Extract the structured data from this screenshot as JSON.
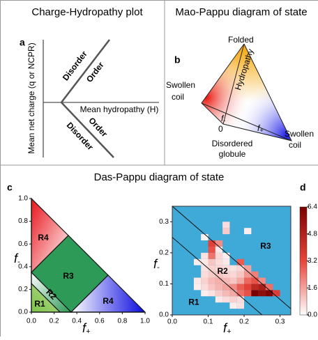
{
  "panel_a": {
    "letter": "a",
    "title": "Charge-Hydropathy plot",
    "y_label": "Mean net charge (q or NCPR)",
    "x_label": "Mean hydropathy (H)",
    "upper": [
      "Disorder",
      "Order"
    ],
    "lower": [
      "Order",
      "Disorder"
    ]
  },
  "panel_b": {
    "letter": "b",
    "title": "Mao-Pappu diagram of state",
    "top": "Folded",
    "axis": "Hydropathy",
    "left": [
      "Swollen",
      "coil"
    ],
    "right": [
      "Swollen",
      "coil"
    ],
    "bottom": [
      "Disordered",
      "globule"
    ],
    "origin": "0",
    "f_minus": {
      "symbol": "f",
      "sub": "-"
    },
    "f_plus": {
      "symbol": "f",
      "sub": "+"
    }
  },
  "bottom_title": "Das-Pappu diagram of state",
  "panel_c": {
    "letter": "c",
    "regions": [
      "R4",
      "R3",
      "R4",
      "R1",
      "R2"
    ],
    "xticks": [
      {
        "value": 0,
        "label": "0.0"
      },
      0.2,
      0.4,
      0.6,
      0.8,
      {
        "value": 1,
        "label": "1.0"
      }
    ],
    "yticks": [
      {
        "value": 0,
        "label": "0.0"
      },
      0.2,
      0.4,
      0.6,
      0.8,
      {
        "value": 1,
        "label": "1.0"
      }
    ],
    "x_label": {
      "symbol": "f",
      "sub": "+"
    },
    "y_label": {
      "symbol": "f",
      "sub": "-"
    }
  },
  "panel_d": {
    "letter": "d",
    "type": "heatmap",
    "xlim": [
      0,
      0.33
    ],
    "ylim": [
      0,
      0.35
    ],
    "bin": 0.02,
    "xticks": [
      {
        "value": 0,
        "label": "0.0"
      },
      0.1,
      0.2,
      0.3
    ],
    "yticks": [
      {
        "value": 0,
        "label": "0.0"
      },
      0.1,
      0.2,
      0.3
    ],
    "boundaries": [
      0.25,
      0.35
    ],
    "regions": [
      {
        "label": "R1",
        "x": 0.06,
        "y": 0.04
      },
      {
        "label": "R2",
        "x": 0.14,
        "y": 0.14
      },
      {
        "label": "R3",
        "x": 0.26,
        "y": 0.22
      }
    ],
    "x_label": {
      "symbol": "f",
      "sub": "+"
    },
    "y_label": {
      "symbol": "f",
      "sub": "-"
    },
    "clim": [
      0,
      6.4
    ],
    "cticks": [
      {
        "value": 0,
        "label": "0.0"
      },
      1.6,
      3.2,
      4.8,
      6.4
    ],
    "cells": [
      [
        0.16,
        0.02,
        0.3
      ],
      [
        0.18,
        0.02,
        0.5
      ],
      [
        0.12,
        0.04,
        0.4
      ],
      [
        0.14,
        0.04,
        0.6
      ],
      [
        0.16,
        0.04,
        0.8
      ],
      [
        0.18,
        0.04,
        0.6
      ],
      [
        0.08,
        0.06,
        0.3
      ],
      [
        0.1,
        0.06,
        0.5
      ],
      [
        0.12,
        0.06,
        0.9
      ],
      [
        0.14,
        0.06,
        1.2
      ],
      [
        0.16,
        0.06,
        1.5
      ],
      [
        0.18,
        0.06,
        2.5
      ],
      [
        0.2,
        0.06,
        3.0
      ],
      [
        0.22,
        0.06,
        6.4
      ],
      [
        0.24,
        0.06,
        5.8
      ],
      [
        0.26,
        0.06,
        6.2
      ],
      [
        0.28,
        0.06,
        3.5
      ],
      [
        0.06,
        0.08,
        0.3
      ],
      [
        0.08,
        0.08,
        0.6
      ],
      [
        0.1,
        0.08,
        1.0
      ],
      [
        0.12,
        0.08,
        1.3
      ],
      [
        0.14,
        0.08,
        1.6
      ],
      [
        0.16,
        0.08,
        2.0
      ],
      [
        0.18,
        0.08,
        2.8
      ],
      [
        0.2,
        0.08,
        3.4
      ],
      [
        0.22,
        0.08,
        4.5
      ],
      [
        0.24,
        0.08,
        5.0
      ],
      [
        0.26,
        0.08,
        2.5
      ],
      [
        0.06,
        0.1,
        0.4
      ],
      [
        0.08,
        0.1,
        0.8
      ],
      [
        0.1,
        0.1,
        1.2
      ],
      [
        0.12,
        0.1,
        1.4
      ],
      [
        0.14,
        0.1,
        1.2
      ],
      [
        0.16,
        0.1,
        1.0
      ],
      [
        0.18,
        0.1,
        1.5
      ],
      [
        0.2,
        0.1,
        2.6
      ],
      [
        0.22,
        0.1,
        3.0
      ],
      [
        0.24,
        0.1,
        2.0
      ],
      [
        0.08,
        0.12,
        0.6
      ],
      [
        0.1,
        0.12,
        0.9
      ],
      [
        0.12,
        0.12,
        1.0
      ],
      [
        0.14,
        0.12,
        0.8
      ],
      [
        0.16,
        0.12,
        0.7
      ],
      [
        0.18,
        0.12,
        1.0
      ],
      [
        0.2,
        0.12,
        1.8
      ],
      [
        0.22,
        0.12,
        2.2
      ],
      [
        0.08,
        0.14,
        0.5
      ],
      [
        0.1,
        0.14,
        0.8
      ],
      [
        0.12,
        0.14,
        0.7
      ],
      [
        0.14,
        0.14,
        0.6
      ],
      [
        0.16,
        0.14,
        0.5
      ],
      [
        0.18,
        0.14,
        0.7
      ],
      [
        0.2,
        0.14,
        1.6
      ],
      [
        0.06,
        0.16,
        0.3
      ],
      [
        0.08,
        0.16,
        0.4
      ],
      [
        0.1,
        0.16,
        1.0
      ],
      [
        0.12,
        0.16,
        0.6
      ],
      [
        0.14,
        0.16,
        0.4
      ],
      [
        0.18,
        0.16,
        2.8
      ],
      [
        0.08,
        0.18,
        0.5
      ],
      [
        0.1,
        0.18,
        2.4
      ],
      [
        0.12,
        0.18,
        0.7
      ],
      [
        0.14,
        0.18,
        0.3
      ],
      [
        0.1,
        0.2,
        3.0
      ],
      [
        0.12,
        0.2,
        0.4
      ],
      [
        0.1,
        0.22,
        3.4
      ],
      [
        0.12,
        0.22,
        2.0
      ],
      [
        0.08,
        0.24,
        0.2
      ],
      [
        0.14,
        0.26,
        0.9
      ],
      [
        0.2,
        0.26,
        0.3
      ],
      [
        0.14,
        0.28,
        0.6
      ]
    ]
  }
}
